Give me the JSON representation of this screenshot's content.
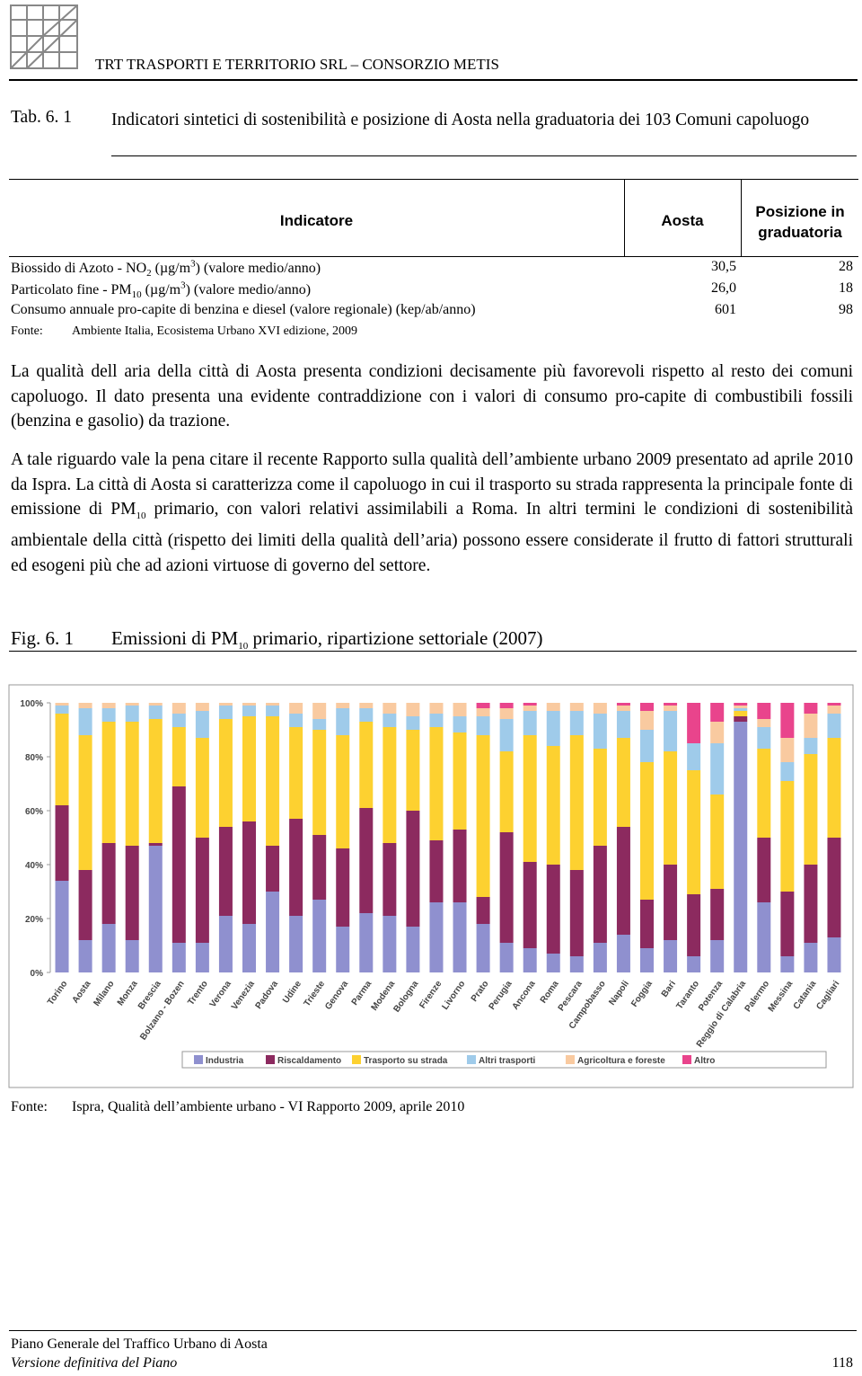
{
  "header": {
    "title": "TRT TRASPORTI E TERRITORIO SRL – CONSORZIO METIS"
  },
  "table": {
    "number": "Tab. 6. 1",
    "caption": "Indicatori sintetici di sostenibilità e posizione di Aosta nella graduatoria dei 103 Comuni capoluogo",
    "columns": [
      "Indicatore",
      "Aosta",
      "Posizione in graduatoria"
    ],
    "rows": [
      {
        "label": [
          "Biossido di Azoto - NO",
          "2",
          " (µg/m",
          "3",
          ") (valore medio/anno)"
        ],
        "aosta": "30,5",
        "position": "28"
      },
      {
        "label": [
          "Particolato fine - PM",
          "10",
          " (µg/m",
          "3",
          ") (valore medio/anno)"
        ],
        "aosta": "26,0",
        "position": "18"
      },
      {
        "label": [
          "Consumo annuale pro-capite di benzina e diesel (valore regionale) (kep/ab/anno)"
        ],
        "aosta": "601",
        "position": "98"
      }
    ],
    "source": [
      "Fonte:",
      "Ambiente Italia, Ecosistema Urbano XVI edizione, 2009"
    ]
  },
  "paragraphs": [
    [
      "La qualità dell aria della città di Aosta presenta condizioni decisamente più favorevoli rispetto al resto dei comuni capoluogo. Il dato presenta una evidente contraddizione con i valori di consumo pro-capite di combustibili fossili (benzina e gasolio) da trazione."
    ],
    [
      "A tale riguardo vale la pena citare il recente Rapporto sulla qualità dell’ambiente urbano 2009 presentato ad aprile 2010 da Ispra. La città di Aosta si caratterizza come il capoluogo in cui il trasporto su strada rappresenta la principale fonte di emissione di PM",
      "10",
      " primario, con valori relativi assimilabili a Roma. In altri termini le condizioni di sostenibilità ambientale della città (rispetto dei limiti della qualità dell’aria) possono essere considerate il frutto di fattori strutturali ed esogeni più che ad azioni virtuose di governo del settore."
    ]
  ],
  "figure": {
    "number": "Fig. 6. 1",
    "caption": [
      "Emissioni di PM",
      "10",
      " primario, ripartizione settoriale (2007)"
    ],
    "source": [
      "Fonte:",
      "Ispra, Qualità dell’ambiente urbano - VI Rapporto 2009, aprile 2010"
    ]
  },
  "footer": {
    "line1": "Piano Generale del Traffico Urbano di Aosta",
    "line2": "Versione definitiva del Piano",
    "page": "118"
  },
  "chart_data": {
    "type": "bar",
    "stacked": true,
    "categories": [
      "Torino",
      "Aosta",
      "Milano",
      "Monza",
      "Brescia",
      "Bolzano - Bozen",
      "Trento",
      "Verona",
      "Venezia",
      "Padova",
      "Udine",
      "Trieste",
      "Genova",
      "Parma",
      "Modena",
      "Bologna",
      "Firenze",
      "Livorno",
      "Prato",
      "Perugia",
      "Ancona",
      "Roma",
      "Pescara",
      "Campobasso",
      "Napoli",
      "Foggia",
      "Bari",
      "Taranto",
      "Potenza",
      "Reggio di Calabria",
      "Palermo",
      "Messina",
      "Catania",
      "Cagliari"
    ],
    "series": [
      {
        "name": "Industria",
        "color": "#8f90cf",
        "values": [
          34,
          12,
          18,
          12,
          47,
          11,
          11,
          21,
          18,
          30,
          21,
          27,
          17,
          22,
          21,
          17,
          26,
          26,
          18,
          11,
          9,
          7,
          6,
          11,
          14,
          9,
          12,
          6,
          12,
          93,
          26,
          6,
          11,
          13
        ]
      },
      {
        "name": "Riscaldamento",
        "color": "#8c2a5f",
        "values": [
          28,
          26,
          30,
          35,
          1,
          58,
          39,
          33,
          38,
          17,
          36,
          24,
          29,
          39,
          27,
          43,
          23,
          27,
          10,
          41,
          32,
          33,
          32,
          36,
          40,
          18,
          28,
          23,
          19,
          2,
          24,
          24,
          29,
          37
        ]
      },
      {
        "name": "Trasporto su strada",
        "color": "#fdd130",
        "values": [
          34,
          50,
          45,
          46,
          46,
          22,
          37,
          40,
          39,
          48,
          34,
          39,
          42,
          32,
          43,
          30,
          42,
          36,
          60,
          30,
          47,
          44,
          50,
          36,
          33,
          51,
          42,
          46,
          35,
          2,
          33,
          41,
          41,
          37
        ]
      },
      {
        "name": "Altri trasporti",
        "color": "#9fcbea",
        "values": [
          3,
          10,
          5,
          6,
          5,
          5,
          10,
          5,
          4,
          4,
          5,
          4,
          10,
          5,
          5,
          5,
          5,
          6,
          7,
          12,
          9,
          13,
          9,
          13,
          10,
          12,
          15,
          10,
          19,
          1,
          8,
          7,
          6,
          9
        ]
      },
      {
        "name": "Agricoltura e foreste",
        "color": "#f9caa0",
        "values": [
          1,
          2,
          2,
          1,
          1,
          4,
          3,
          1,
          1,
          1,
          4,
          6,
          2,
          2,
          4,
          5,
          4,
          5,
          3,
          4,
          2,
          3,
          3,
          4,
          2,
          7,
          2,
          0,
          8,
          1,
          3,
          9,
          9,
          3
        ]
      },
      {
        "name": "Altro",
        "color": "#e9448c",
        "values": [
          0,
          0,
          0,
          0,
          0,
          0,
          0,
          0,
          0,
          0,
          0,
          0,
          0,
          0,
          0,
          0,
          0,
          0,
          2,
          2,
          1,
          0,
          0,
          0,
          1,
          3,
          1,
          15,
          7,
          1,
          6,
          13,
          4,
          1
        ]
      }
    ],
    "ylim": [
      0,
      100
    ],
    "yticks": [
      {
        "value": 0,
        "label": "0%"
      },
      {
        "value": 20,
        "label": "20%"
      },
      {
        "value": 40,
        "label": "40%"
      },
      {
        "value": 60,
        "label": "60%"
      },
      {
        "value": 80,
        "label": "80%"
      },
      {
        "value": 100,
        "label": "100%"
      }
    ],
    "grid": false,
    "legend": "bottom"
  }
}
